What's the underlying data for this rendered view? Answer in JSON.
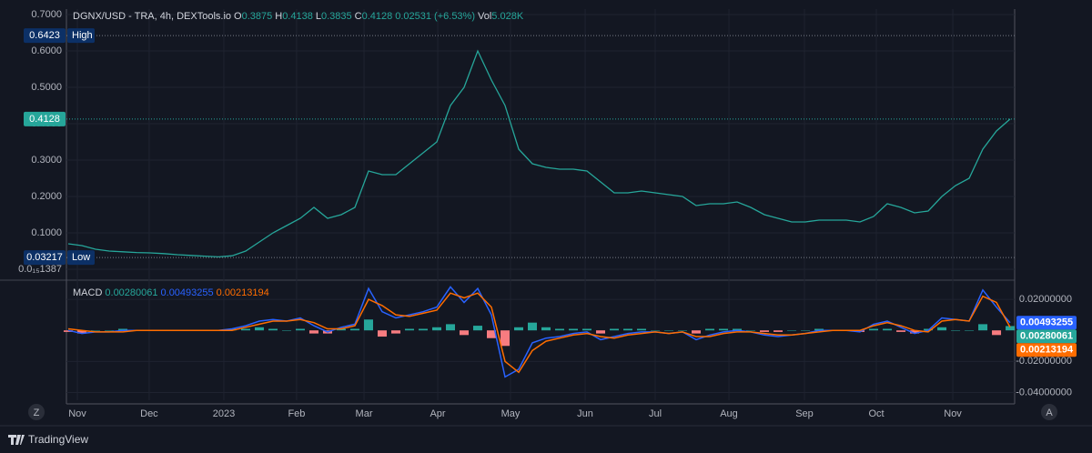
{
  "chart_data": [
    {
      "type": "line",
      "title": "DGNX/USD - TRA, 4h, DEXTools.io",
      "legend": {
        "open_label": "O",
        "open": 0.3875,
        "high_label": "H",
        "high": 0.4138,
        "low_label": "L",
        "low": 0.3835,
        "close_label": "C",
        "change": "0.02531 (+6.53%)",
        "volume_label": "Vol",
        "volume": "5.028K"
      },
      "color": "#26a69a",
      "values": [
        0.07,
        0.065,
        0.055,
        0.05,
        0.048,
        0.046,
        0.045,
        0.043,
        0.04,
        0.038,
        0.036,
        0.034,
        0.037,
        0.05,
        0.075,
        0.1,
        0.12,
        0.14,
        0.17,
        0.14,
        0.15,
        0.17,
        0.27,
        0.26,
        0.26,
        0.29,
        0.32,
        0.35,
        0.45,
        0.5,
        0.6,
        0.52,
        0.45,
        0.33,
        0.29,
        0.28,
        0.275,
        0.275,
        0.27,
        0.24,
        0.21,
        0.21,
        0.215,
        0.21,
        0.205,
        0.2,
        0.175,
        0.18,
        0.18,
        0.185,
        0.17,
        0.15,
        0.14,
        0.13,
        0.13,
        0.135,
        0.135,
        0.135,
        0.13,
        0.145,
        0.18,
        0.17,
        0.155,
        0.16,
        0.2,
        0.23,
        0.25,
        0.33,
        0.38,
        0.4128
      ],
      "high_marker": {
        "label": "High",
        "value": 0.6423
      },
      "low_marker": {
        "label": "Low",
        "value": 0.03217
      },
      "xlim": [
        -0.13,
        69.33
      ],
      "xticks": [
        {
          "value": 0.67,
          "label": "Nov"
        },
        {
          "value": 5.93,
          "label": "Dec"
        },
        {
          "value": 11.4,
          "label": "2023"
        },
        {
          "value": 16.73,
          "label": "Feb"
        },
        {
          "value": 21.67,
          "label": "Mar"
        },
        {
          "value": 27.07,
          "label": "Apr"
        },
        {
          "value": 32.4,
          "label": "May"
        },
        {
          "value": 37.87,
          "label": "Jun"
        },
        {
          "value": 43,
          "label": "Jul"
        },
        {
          "value": 48.4,
          "label": "Aug"
        },
        {
          "value": 53.93,
          "label": "Sep"
        },
        {
          "value": 59.2,
          "label": "Oct"
        },
        {
          "value": 64.8,
          "label": "Nov"
        }
      ],
      "ylim": [
        -0.0225,
        0.715
      ],
      "yticks": [
        {
          "value": 1.387e-16,
          "label": "0.0₁₅1387"
        },
        {
          "value": 0.1,
          "label": "0.1000"
        },
        {
          "value": 0.2,
          "label": "0.2000"
        },
        {
          "value": 0.3,
          "label": "0.3000"
        },
        {
          "value": 0.4,
          "label": "0.4000"
        },
        {
          "value": 0.5,
          "label": "0.5000"
        },
        {
          "value": 0.6,
          "label": "0.6000"
        },
        {
          "value": 0.7,
          "label": "0.7000"
        }
      ],
      "grid": true
    },
    {
      "type": "macd",
      "title": "MACD",
      "ylim": [
        -0.045,
        0.03
      ],
      "yticks": [
        {
          "value": 0.02,
          "label": "0.02000000"
        },
        {
          "value": -0.02,
          "label": "-0.02000000"
        },
        {
          "value": -0.04,
          "label": "-0.04000000"
        }
      ],
      "histogram": {
        "color_up": "#26a69a",
        "color_down": "#f77c80",
        "values": [
          -0.001,
          -0.002,
          0,
          0,
          0.001,
          0,
          0,
          0,
          0,
          0,
          0,
          0,
          0.001,
          0.001,
          0.002,
          0.001,
          0,
          0.001,
          -0.002,
          -0.002,
          0.001,
          0.001,
          0.007,
          -0.004,
          -0.002,
          0.001,
          0.001,
          0.002,
          0.004,
          -0.003,
          0.003,
          -0.005,
          -0.01,
          0.002,
          0.005,
          0.002,
          0.001,
          0.001,
          0.001,
          -0.002,
          0.001,
          0.001,
          0.001,
          0,
          0,
          0,
          -0.002,
          0.001,
          0.001,
          0.001,
          0,
          -0.001,
          -0.001,
          0,
          0,
          0.001,
          0,
          0,
          -0.001,
          0.001,
          0.001,
          -0.001,
          -0.002,
          0.001,
          0.002,
          0,
          0,
          0.004,
          -0.003,
          0.00280061
        ]
      },
      "series": [
        {
          "color": "#2962ff",
          "values": [
            0,
            -0.002,
            -0.001,
            -0.001,
            0,
            0,
            0,
            0,
            0,
            0,
            0,
            0,
            0.001,
            0.003,
            0.006,
            0.007,
            0.006,
            0.008,
            0.003,
            -0.001,
            0.002,
            0.004,
            0.027,
            0.012,
            0.008,
            0.01,
            0.012,
            0.015,
            0.028,
            0.018,
            0.027,
            0.01,
            -0.03,
            -0.025,
            -0.008,
            -0.005,
            -0.004,
            -0.002,
            -0.001,
            -0.006,
            -0.004,
            -0.002,
            -0.001,
            -0.001,
            -0.002,
            -0.001,
            -0.006,
            -0.003,
            -0.001,
            0,
            -0.001,
            -0.003,
            -0.004,
            -0.003,
            -0.002,
            0,
            0,
            0,
            -0.001,
            0.004,
            0.006,
            0.002,
            -0.002,
            0,
            0.008,
            0.007,
            0.006,
            0.026,
            0.015,
            0.00493255
          ]
        },
        {
          "color": "#ff6d00",
          "values": [
            0.001,
            0,
            -0.001,
            -0.001,
            -0.001,
            0,
            0,
            0,
            0,
            0,
            0,
            0,
            0,
            0.002,
            0.004,
            0.006,
            0.006,
            0.007,
            0.005,
            0.001,
            0.001,
            0.003,
            0.02,
            0.016,
            0.01,
            0.009,
            0.011,
            0.013,
            0.024,
            0.021,
            0.024,
            0.015,
            -0.02,
            -0.027,
            -0.013,
            -0.007,
            -0.005,
            -0.003,
            -0.002,
            -0.004,
            -0.005,
            -0.003,
            -0.002,
            -0.001,
            -0.002,
            -0.001,
            -0.004,
            -0.004,
            -0.002,
            -0.001,
            -0.001,
            -0.002,
            -0.003,
            -0.003,
            -0.002,
            -0.001,
            0,
            0,
            0,
            0.003,
            0.005,
            0.003,
            0,
            -0.001,
            0.006,
            0.007,
            0.006,
            0.022,
            0.018,
            0.00213194
          ]
        }
      ]
    }
  ],
  "controls": {
    "left_button": "Z",
    "right_button": "A"
  },
  "footer": {
    "brand": "TradingView"
  }
}
